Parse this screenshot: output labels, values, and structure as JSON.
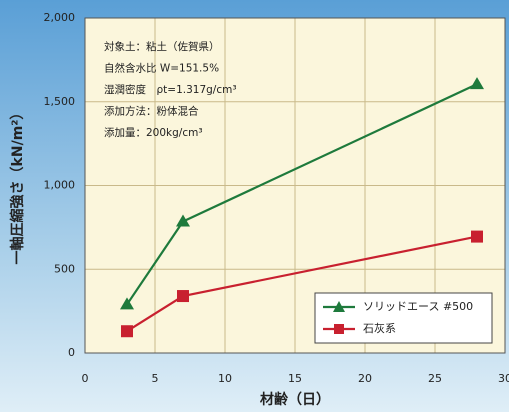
{
  "chart_data": {
    "type": "line",
    "x_label": "材齢（日）",
    "y_label": "一軸圧縮強さ（kN/m²）",
    "annotations": [
      "対象土：粘土（佐賀県）",
      "自然含水比 W=151.5%",
      "湿潤密度　ρt=1.317g/cm³",
      "添加方法：粉体混合",
      "添加量：200kg/cm³"
    ],
    "x": [
      3,
      7,
      28
    ],
    "series": [
      {
        "name": "ソリッドエース #500",
        "color": "#1e7a3c",
        "marker": "triangle",
        "values": [
          290,
          785,
          1605
        ]
      },
      {
        "name": "石灰系",
        "color": "#c8202f",
        "marker": "square",
        "values": [
          130,
          340,
          695
        ]
      }
    ],
    "xlim": [
      0,
      30
    ],
    "xticks": [
      0,
      5,
      10,
      15,
      20,
      25,
      30
    ],
    "ylim": [
      0,
      2000
    ],
    "yticks": [
      0,
      500,
      {
        "value": 1000,
        "label": "1,000"
      },
      {
        "value": 1500,
        "label": "1,500"
      },
      {
        "value": 2000,
        "label": "2,000"
      }
    ],
    "grid": true,
    "legend": "lower right"
  }
}
